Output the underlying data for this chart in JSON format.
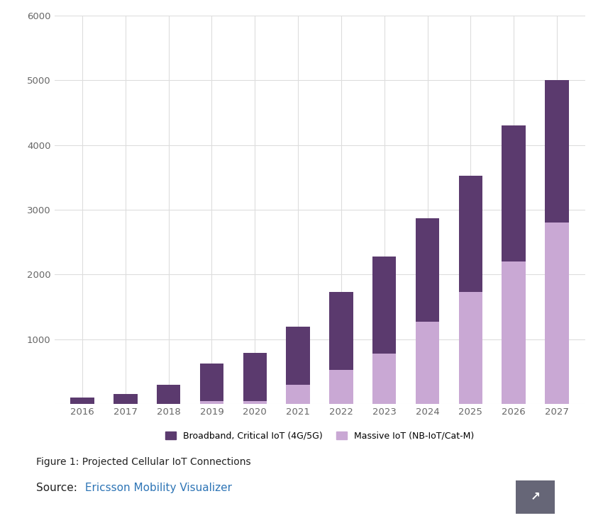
{
  "years": [
    2016,
    2017,
    2018,
    2019,
    2020,
    2021,
    2022,
    2023,
    2024,
    2025,
    2026,
    2027
  ],
  "massive_iot": [
    0,
    0,
    0,
    50,
    50,
    300,
    530,
    780,
    1270,
    1730,
    2200,
    2800
  ],
  "broadband_critical": [
    100,
    150,
    300,
    580,
    740,
    900,
    1200,
    1500,
    1600,
    1800,
    2100,
    2200
  ],
  "broadband_color": "#5b3a6e",
  "massive_iot_color": "#c9a8d4",
  "background_color": "#ffffff",
  "grid_color": "#dddddd",
  "ylim": [
    0,
    6000
  ],
  "yticks": [
    0,
    1000,
    2000,
    3000,
    4000,
    5000,
    6000
  ],
  "legend_label_broadband": "Broadband, Critical IoT (4G/5G)",
  "legend_label_massive": "Massive IoT (NB-IoT/Cat-M)",
  "figure_label": "Figure 1: Projected Cellular IoT Connections",
  "source_color": "#2e75b6",
  "bar_width": 0.55
}
